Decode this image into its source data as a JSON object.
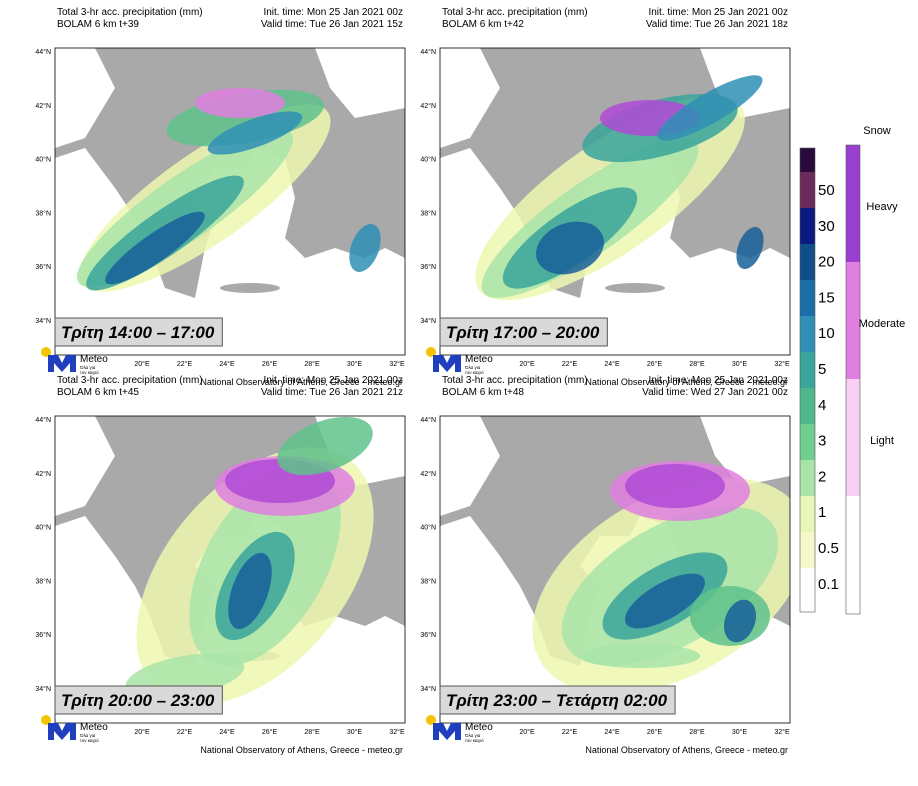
{
  "panels": [
    {
      "title": "Total 3-hr acc. precipitation (mm)",
      "model_run": "BOLAM 6 km t+39",
      "init_time": "Init. time: Mon 25 Jan 2021 00z",
      "valid_time": "Valid time: Tue 26 Jan 2021 15z",
      "period": "Τρίτη 14:00 – 17:00"
    },
    {
      "title": "Total 3-hr acc. precipitation (mm)",
      "model_run": "BOLAM 6 km t+42",
      "init_time": "Init. time: Mon 25 Jan 2021 00z",
      "valid_time": "Valid time: Tue 26 Jan 2021 18z",
      "period": "Τρίτη 17:00 – 20:00"
    },
    {
      "title": "Total 3-hr acc. precipitation (mm)",
      "model_run": "BOLAM 6 km t+45",
      "init_time": "Init. time: Mon 25 Jan 2021 00z",
      "valid_time": "Valid time: Tue 26 Jan 2021 21z",
      "period": "Τρίτη 20:00 – 23:00"
    },
    {
      "title": "Total 3-hr acc. precipitation (mm)",
      "model_run": "BOLAM 6 km t+48",
      "init_time": "Init. time: Mon 25 Jan 2021 00z",
      "valid_time": "Valid time: Wed 27 Jan 2021 00z",
      "period": "Τρίτη 23:00 –  Τετάρτη 02:00"
    }
  ],
  "latitudes": [
    "44°N",
    "42°N",
    "40°N",
    "38°N",
    "36°N",
    "34°N"
  ],
  "longitudes": [
    "20°E",
    "22°E",
    "24°E",
    "26°E",
    "28°E",
    "30°E",
    "32°E"
  ],
  "logo": {
    "name": "Meteo",
    "slogan_1": "Όλα για",
    "slogan_2": "τον καιρό"
  },
  "credit": "National Observatory of Athens, Greece - meteo.gr",
  "rain_legend": {
    "levels": [
      50,
      30,
      20,
      15,
      10,
      5,
      4,
      3,
      2,
      1,
      0.5,
      0.1
    ]
  },
  "snow_legend": {
    "title": "Snow",
    "classes": [
      "Heavy",
      "Moderate",
      "Light"
    ]
  }
}
